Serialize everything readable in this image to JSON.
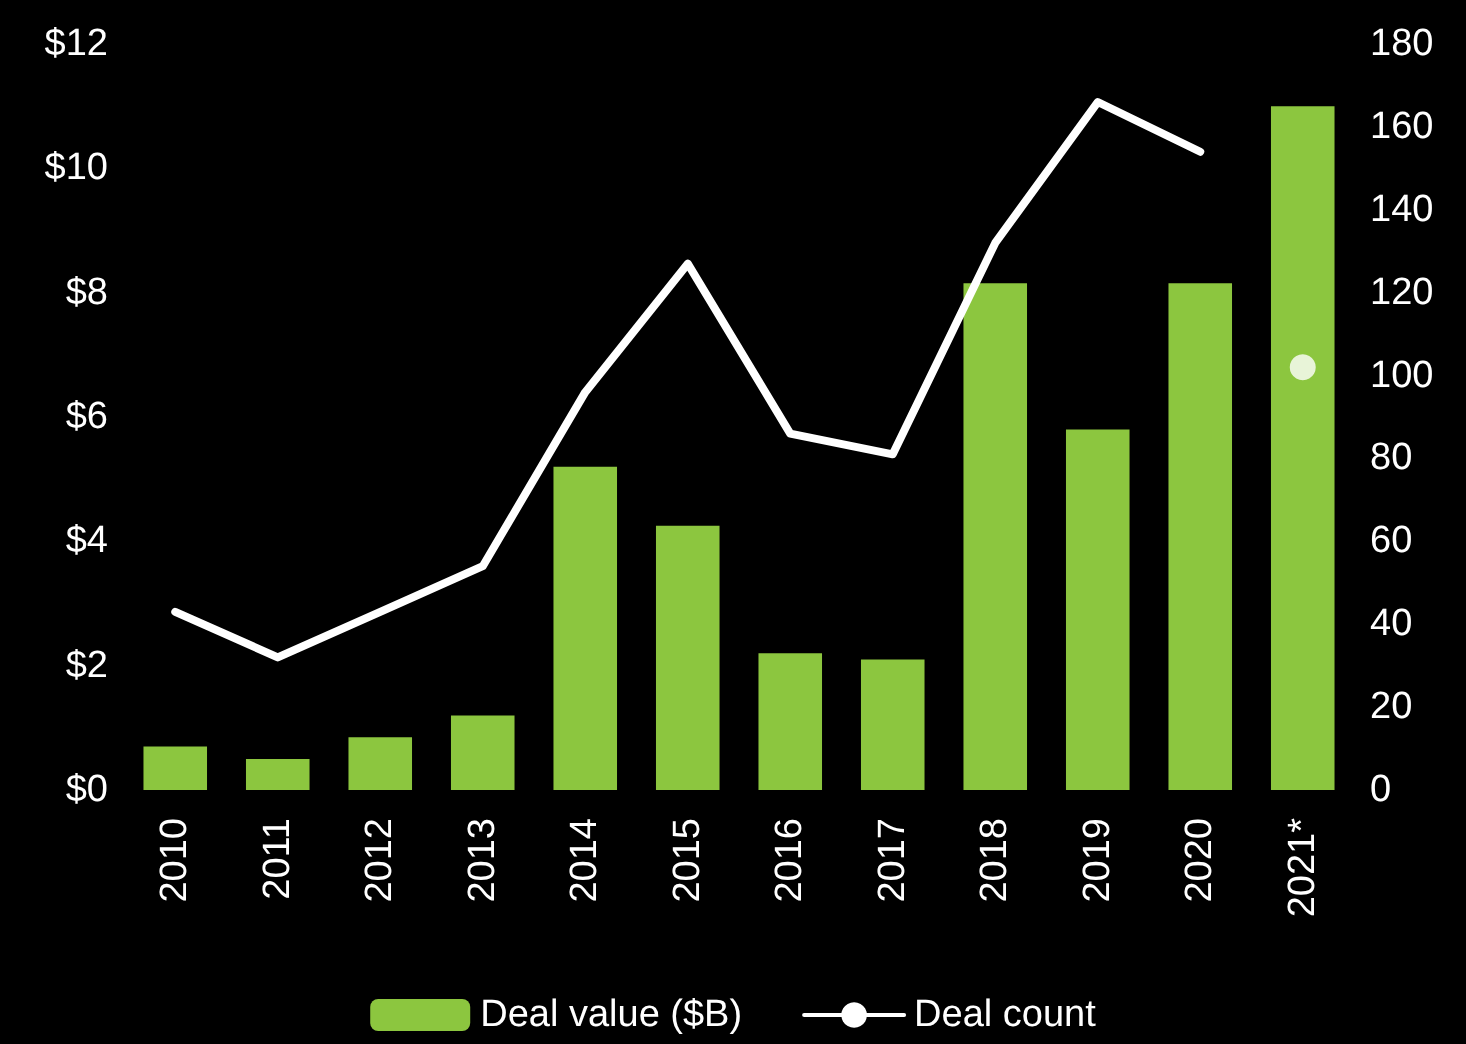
{
  "chart_data": {
    "type": "bar",
    "categories": [
      "2010",
      "2011",
      "2012",
      "2013",
      "2014",
      "2015",
      "2016",
      "2017",
      "2018",
      "2019",
      "2020",
      "2021*"
    ],
    "series": [
      {
        "name": "Deal value ($B)",
        "color": "#8cc63f",
        "values": [
          0.7,
          0.5,
          0.85,
          1.2,
          5.2,
          4.25,
          2.2,
          2.1,
          8.15,
          5.8,
          8.15,
          11.0
        ]
      },
      {
        "name": "Deal count",
        "type": "line",
        "axis": "y2",
        "color": "#ffffff",
        "values": [
          43,
          32,
          43,
          54,
          96,
          127,
          86,
          81,
          132,
          166,
          154,
          null
        ]
      },
      {
        "type": "scatter",
        "axis": "y2",
        "color": "#ffffff",
        "x": [
          "2021*"
        ],
        "values": [
          102
        ]
      }
    ],
    "ylim": [
      0,
      12
    ],
    "yticks": [
      {
        "value": 0,
        "label": "$0"
      },
      {
        "value": 2,
        "label": "$2"
      },
      {
        "value": 4,
        "label": "$4"
      },
      {
        "value": 6,
        "label": "$6"
      },
      {
        "value": 8,
        "label": "$8"
      },
      {
        "value": 10,
        "label": "$10"
      },
      {
        "value": 12,
        "label": "$12"
      }
    ],
    "y2lim": [
      0,
      180
    ],
    "y2ticks": [
      0,
      20,
      40,
      60,
      80,
      100,
      120,
      140,
      160,
      180
    ],
    "legend": "bottom",
    "grid": false,
    "line_style": "solid"
  }
}
